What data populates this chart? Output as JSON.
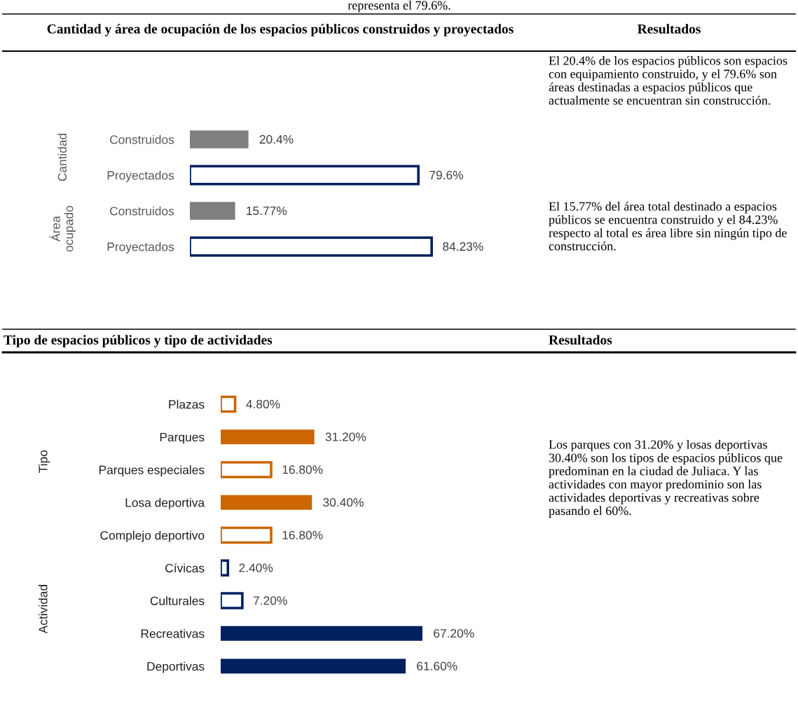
{
  "chart_data": [
    {
      "type": "other",
      "annotations": [
        "representa el 79.6%."
      ]
    },
    {
      "type": "bar",
      "orientation": "horizontal",
      "title": "Cantidad y área de ocupación de los espacios públicos construidos y proyectados",
      "categories": [
        "Construidos",
        "Proyectados",
        "Construidos",
        "Proyectados"
      ],
      "tick_labels": "y",
      "annotations": [
        "Cantidad",
        "Área\nocupado"
      ],
      "series": [
        {
          "color": "#7f7f7f",
          "values": [
            20.4,
            null,
            15.77,
            null
          ],
          "value_labels": [
            "20.4%",
            null,
            "15.77%",
            null
          ]
        },
        {
          "color": "#002060",
          "values": [
            null,
            79.6,
            null,
            84.23
          ],
          "value_labels": [
            null,
            "79.6%",
            null,
            "84.23%"
          ]
        }
      ]
    },
    {
      "type": "other",
      "title": "Resultados",
      "annotations": [
        "El 20.4% de los espacios públicos son espacios con equipamiento construido, y el 79.6% son áreas destinadas a espacios públicos que actualmente se encuentran sin construcción.",
        "El 15.77% del área total destinado a espacios públicos se encuentra construido y el 84.23% respecto al total es área libre sin ningún tipo de construcción."
      ]
    },
    {
      "type": "bar",
      "orientation": "horizontal",
      "title": "Tipo de espacios públicos y tipo de actividades",
      "categories": [
        "Plazas",
        "Parques",
        "Parques especiales",
        "Losa deportiva",
        "Complejo deportivo",
        "Cívicas",
        "Culturales",
        "Recreativas",
        "Deportivas"
      ],
      "tick_labels": "y",
      "annotations": [
        "Tipo",
        "Actividad"
      ],
      "series": [
        {
          "color": "#cc6600",
          "values": [
            null,
            31.2,
            null,
            30.4,
            null,
            null,
            null,
            null,
            null
          ],
          "value_labels": [
            null,
            "31.20%",
            null,
            "30.40%",
            null,
            null,
            null,
            null,
            null
          ]
        },
        {
          "color": "#cc6600",
          "values": [
            4.8,
            null,
            16.8,
            null,
            16.8,
            null,
            null,
            null,
            null
          ],
          "value_labels": [
            "4.80%",
            null,
            "16.80%",
            null,
            "16.80%",
            null,
            null,
            null,
            null
          ]
        },
        {
          "color": "#002060",
          "values": [
            null,
            null,
            null,
            null,
            null,
            null,
            null,
            67.2,
            61.6
          ],
          "value_labels": [
            null,
            null,
            null,
            null,
            null,
            null,
            null,
            "67.20%",
            "61.60%"
          ]
        },
        {
          "color": "#002060",
          "values": [
            null,
            null,
            null,
            null,
            null,
            2.4,
            7.2,
            null,
            null
          ],
          "value_labels": [
            null,
            null,
            null,
            null,
            null,
            "2.40%",
            "7.20%",
            null,
            null
          ]
        }
      ]
    },
    {
      "type": "other",
      "title": "Resultados",
      "annotations": [
        "Los parques con 31.20% y losas deportivas 30.40% son los tipos de espacios públicos que predominan en la ciudad de Juliaca. Y las actividades con mayor predominio son las actividades deportivas y recreativas sobre pasando el 60%."
      ]
    }
  ]
}
